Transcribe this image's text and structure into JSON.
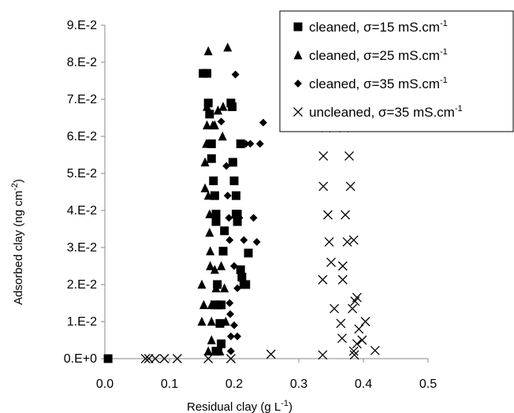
{
  "chart_data": {
    "type": "scatter",
    "xlabel": "Residual clay (g L-1)",
    "ylabel": "Adsorbed clay (ng cm-2)",
    "xlim": [
      0,
      0.5
    ],
    "ylim": [
      0,
      0.09
    ],
    "x_ticks": [
      {
        "value": 0.0,
        "label": "0.0"
      },
      {
        "value": 0.1,
        "label": "0.1"
      },
      {
        "value": 0.2,
        "label": "0.2"
      },
      {
        "value": 0.3,
        "label": "0.3"
      },
      {
        "value": 0.4,
        "label": "0.4"
      },
      {
        "value": 0.5,
        "label": "0.5"
      }
    ],
    "y_ticks": [
      {
        "value": 0.0,
        "label": "0.E+0"
      },
      {
        "value": 0.01,
        "label": "1.E-2"
      },
      {
        "value": 0.02,
        "label": "2.E-2"
      },
      {
        "value": 0.03,
        "label": "3.E-2"
      },
      {
        "value": 0.04,
        "label": "4.E-2"
      },
      {
        "value": 0.05,
        "label": "5.E-2"
      },
      {
        "value": 0.06,
        "label": "6.E-2"
      },
      {
        "value": 0.07,
        "label": "7.E-2"
      },
      {
        "value": 0.08,
        "label": "8.E-2"
      },
      {
        "value": 0.09,
        "label": "9.E-2"
      }
    ],
    "grid": false,
    "legend_position": "top-right",
    "series": [
      {
        "name": "cleaned, σ=15 mS.cm-1",
        "marker": "square",
        "color": "#000000",
        "points": [
          [
            0.005,
            0.0
          ],
          [
            0.152,
            0.077
          ],
          [
            0.158,
            0.077
          ],
          [
            0.16,
            0.069
          ],
          [
            0.162,
            0.066
          ],
          [
            0.165,
            0.058
          ],
          [
            0.165,
            0.054
          ],
          [
            0.168,
            0.048
          ],
          [
            0.17,
            0.044
          ],
          [
            0.172,
            0.039
          ],
          [
            0.172,
            0.037
          ],
          [
            0.174,
            0.02
          ],
          [
            0.175,
            0.0145
          ],
          [
            0.17,
            0.0145
          ],
          [
            0.172,
            0.002
          ],
          [
            0.175,
            0.002
          ],
          [
            0.178,
            0.0095
          ],
          [
            0.18,
            0.0145
          ],
          [
            0.18,
            0.004
          ],
          [
            0.183,
            0.029
          ],
          [
            0.185,
            0.0345
          ],
          [
            0.195,
            0.069
          ],
          [
            0.197,
            0.068
          ],
          [
            0.198,
            0.053
          ],
          [
            0.2,
            0.048
          ],
          [
            0.203,
            0.044
          ],
          [
            0.203,
            0.039
          ],
          [
            0.205,
            0.037
          ],
          [
            0.205,
            0.039
          ],
          [
            0.21,
            0.058
          ],
          [
            0.21,
            0.024
          ],
          [
            0.212,
            0.022
          ],
          [
            0.215,
            0.02
          ],
          [
            0.218,
            0.02
          ],
          [
            0.222,
            0.0285
          ]
        ]
      },
      {
        "name": "cleaned, σ=25 mS.cm-1",
        "marker": "triangle",
        "color": "#000000",
        "points": [
          [
            0.15,
            0.02
          ],
          [
            0.15,
            0.01
          ],
          [
            0.153,
            0.0145
          ],
          [
            0.155,
            0.046
          ],
          [
            0.155,
            0.053
          ],
          [
            0.157,
            0.058
          ],
          [
            0.158,
            0.063
          ],
          [
            0.158,
            0.068
          ],
          [
            0.16,
            0.083
          ],
          [
            0.16,
            0.044
          ],
          [
            0.162,
            0.039
          ],
          [
            0.162,
            0.034
          ],
          [
            0.163,
            0.029
          ],
          [
            0.163,
            0.025
          ],
          [
            0.165,
            0.0145
          ],
          [
            0.165,
            0.01
          ],
          [
            0.16,
            0.002
          ],
          [
            0.165,
            0.005
          ],
          [
            0.167,
            0.063
          ],
          [
            0.17,
            0.063
          ],
          [
            0.17,
            0.024
          ],
          [
            0.172,
            0.019
          ],
          [
            0.175,
            0.067
          ],
          [
            0.178,
            0.002
          ],
          [
            0.18,
            0.025
          ],
          [
            0.182,
            0.06
          ],
          [
            0.183,
            0.068
          ],
          [
            0.185,
            0.019
          ],
          [
            0.187,
            0.01
          ],
          [
            0.19,
            0.084
          ]
        ]
      },
      {
        "name": "cleaned, σ=35 mS.cm-1",
        "marker": "diamond",
        "color": "#000000",
        "points": [
          [
            0.18,
            0.064
          ],
          [
            0.188,
            0.052
          ],
          [
            0.19,
            0.044
          ],
          [
            0.192,
            0.038
          ],
          [
            0.193,
            0.032
          ],
          [
            0.193,
            0.015
          ],
          [
            0.194,
            0.012
          ],
          [
            0.195,
            0.006
          ],
          [
            0.195,
            0.002
          ],
          [
            0.198,
            0.053
          ],
          [
            0.2,
            0.025
          ],
          [
            0.2,
            0.009
          ],
          [
            0.202,
            0.0767
          ],
          [
            0.205,
            0.019
          ],
          [
            0.205,
            0.006
          ],
          [
            0.208,
            0.038
          ],
          [
            0.21,
            0.023
          ],
          [
            0.215,
            0.032
          ],
          [
            0.218,
            0.058
          ],
          [
            0.225,
            0.058
          ],
          [
            0.23,
            0.038
          ],
          [
            0.235,
            0.0315
          ],
          [
            0.24,
            0.058
          ],
          [
            0.245,
            0.0637
          ]
        ]
      },
      {
        "name": "uncleaned,  σ=35 mS.cm-1",
        "marker": "x",
        "color": "#000000",
        "points": [
          [
            0.063,
            0.0
          ],
          [
            0.068,
            0.0
          ],
          [
            0.078,
            0.0
          ],
          [
            0.092,
            0.0
          ],
          [
            0.112,
            0.0
          ],
          [
            0.16,
            0.0
          ],
          [
            0.195,
            0.0
          ],
          [
            0.257,
            0.0012
          ],
          [
            0.337,
            0.001
          ],
          [
            0.337,
            0.0213
          ],
          [
            0.338,
            0.0547
          ],
          [
            0.338,
            0.0465
          ],
          [
            0.342,
            0.0623
          ],
          [
            0.345,
            0.0388
          ],
          [
            0.347,
            0.0315
          ],
          [
            0.35,
            0.026
          ],
          [
            0.355,
            0.0135
          ],
          [
            0.365,
            0.0095
          ],
          [
            0.367,
            0.0055
          ],
          [
            0.368,
            0.0213
          ],
          [
            0.368,
            0.025
          ],
          [
            0.37,
            0.0623
          ],
          [
            0.372,
            0.0388
          ],
          [
            0.375,
            0.0315
          ],
          [
            0.378,
            0.0547
          ],
          [
            0.38,
            0.0465
          ],
          [
            0.383,
            0.0135
          ],
          [
            0.385,
            0.002
          ],
          [
            0.386,
            0.001
          ],
          [
            0.385,
            0.032
          ],
          [
            0.387,
            0.0155
          ],
          [
            0.39,
            0.0165
          ],
          [
            0.39,
            0.004
          ],
          [
            0.393,
            0.008
          ],
          [
            0.398,
            0.005
          ],
          [
            0.403,
            0.01
          ],
          [
            0.418,
            0.0022
          ]
        ]
      }
    ]
  }
}
